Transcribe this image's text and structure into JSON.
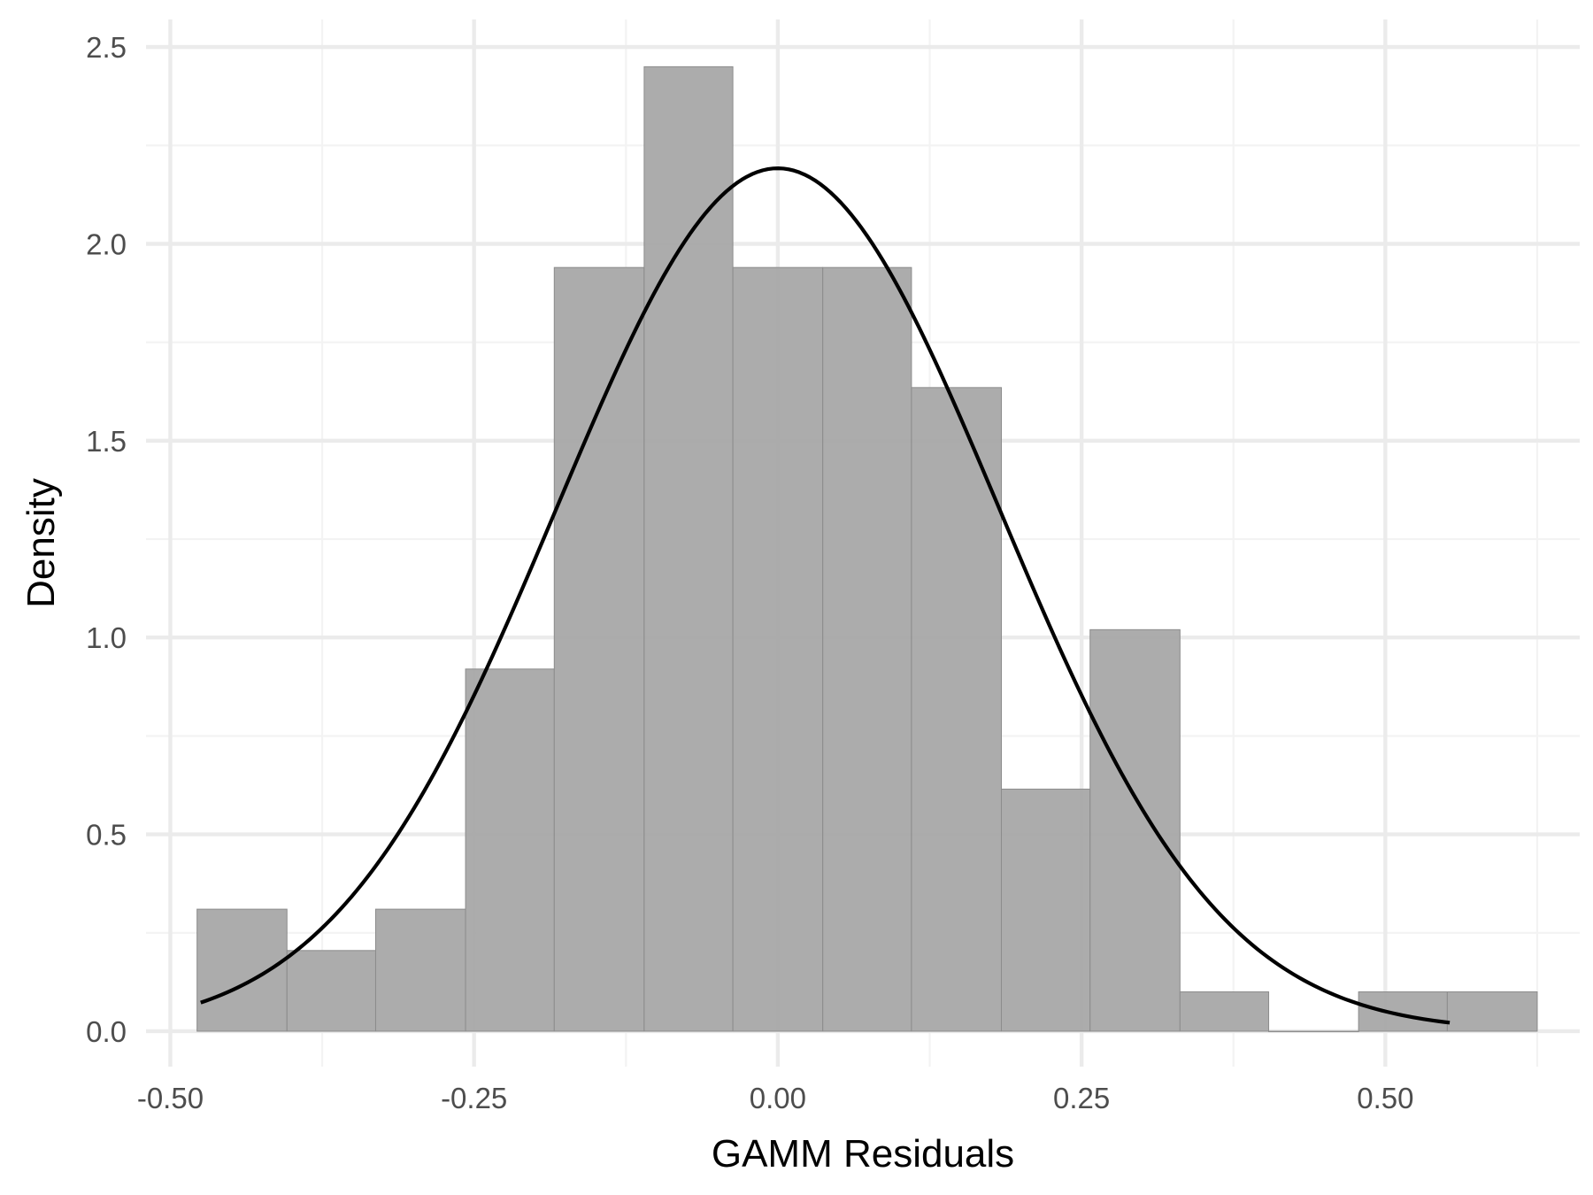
{
  "chart_data": {
    "type": "bar",
    "subtype": "histogram-with-normal-density",
    "xlabel": "GAMM Residuals",
    "ylabel": "Density",
    "xlim": [
      -0.52,
      0.66
    ],
    "ylim": [
      -0.09,
      2.57
    ],
    "x_ticks": [
      -0.5,
      -0.25,
      0.0,
      0.25,
      0.5
    ],
    "x_tick_labels": [
      "-0.50",
      "-0.25",
      "0.00",
      "0.25",
      "0.50"
    ],
    "y_ticks": [
      0.0,
      0.5,
      1.0,
      1.5,
      2.0,
      2.5
    ],
    "y_tick_labels": [
      "0.0",
      "0.5",
      "1.0",
      "1.5",
      "2.0",
      "2.5"
    ],
    "bins": [
      {
        "x0": -0.478,
        "x1": -0.404,
        "density": 0.31
      },
      {
        "x0": -0.404,
        "x1": -0.331,
        "density": 0.205
      },
      {
        "x0": -0.331,
        "x1": -0.257,
        "density": 0.31
      },
      {
        "x0": -0.257,
        "x1": -0.184,
        "density": 0.92
      },
      {
        "x0": -0.184,
        "x1": -0.11,
        "density": 1.94
      },
      {
        "x0": -0.11,
        "x1": -0.037,
        "density": 2.45
      },
      {
        "x0": -0.037,
        "x1": 0.037,
        "density": 1.94
      },
      {
        "x0": 0.037,
        "x1": 0.11,
        "density": 1.94
      },
      {
        "x0": 0.11,
        "x1": 0.184,
        "density": 1.635
      },
      {
        "x0": 0.184,
        "x1": 0.257,
        "density": 0.615
      },
      {
        "x0": 0.257,
        "x1": 0.331,
        "density": 1.02
      },
      {
        "x0": 0.331,
        "x1": 0.404,
        "density": 0.1
      },
      {
        "x0": 0.404,
        "x1": 0.478,
        "density": 0.0
      },
      {
        "x0": 0.478,
        "x1": 0.551,
        "density": 0.1
      },
      {
        "x0": 0.551,
        "x1": 0.625,
        "density": 0.1
      }
    ],
    "density_curve": {
      "distribution": "normal",
      "mean": 0.0,
      "sd": 0.182,
      "x_range": [
        -0.475,
        0.553
      ]
    },
    "grid": true,
    "colors": {
      "bar_fill": "#a8a8a8",
      "bar_outline": "#8c8c8c",
      "curve": "#000000",
      "grid_major": "#ebebeb",
      "grid_minor": "#f3f3f3",
      "tick_text": "#4d4d4d",
      "title_text": "#000000"
    }
  }
}
